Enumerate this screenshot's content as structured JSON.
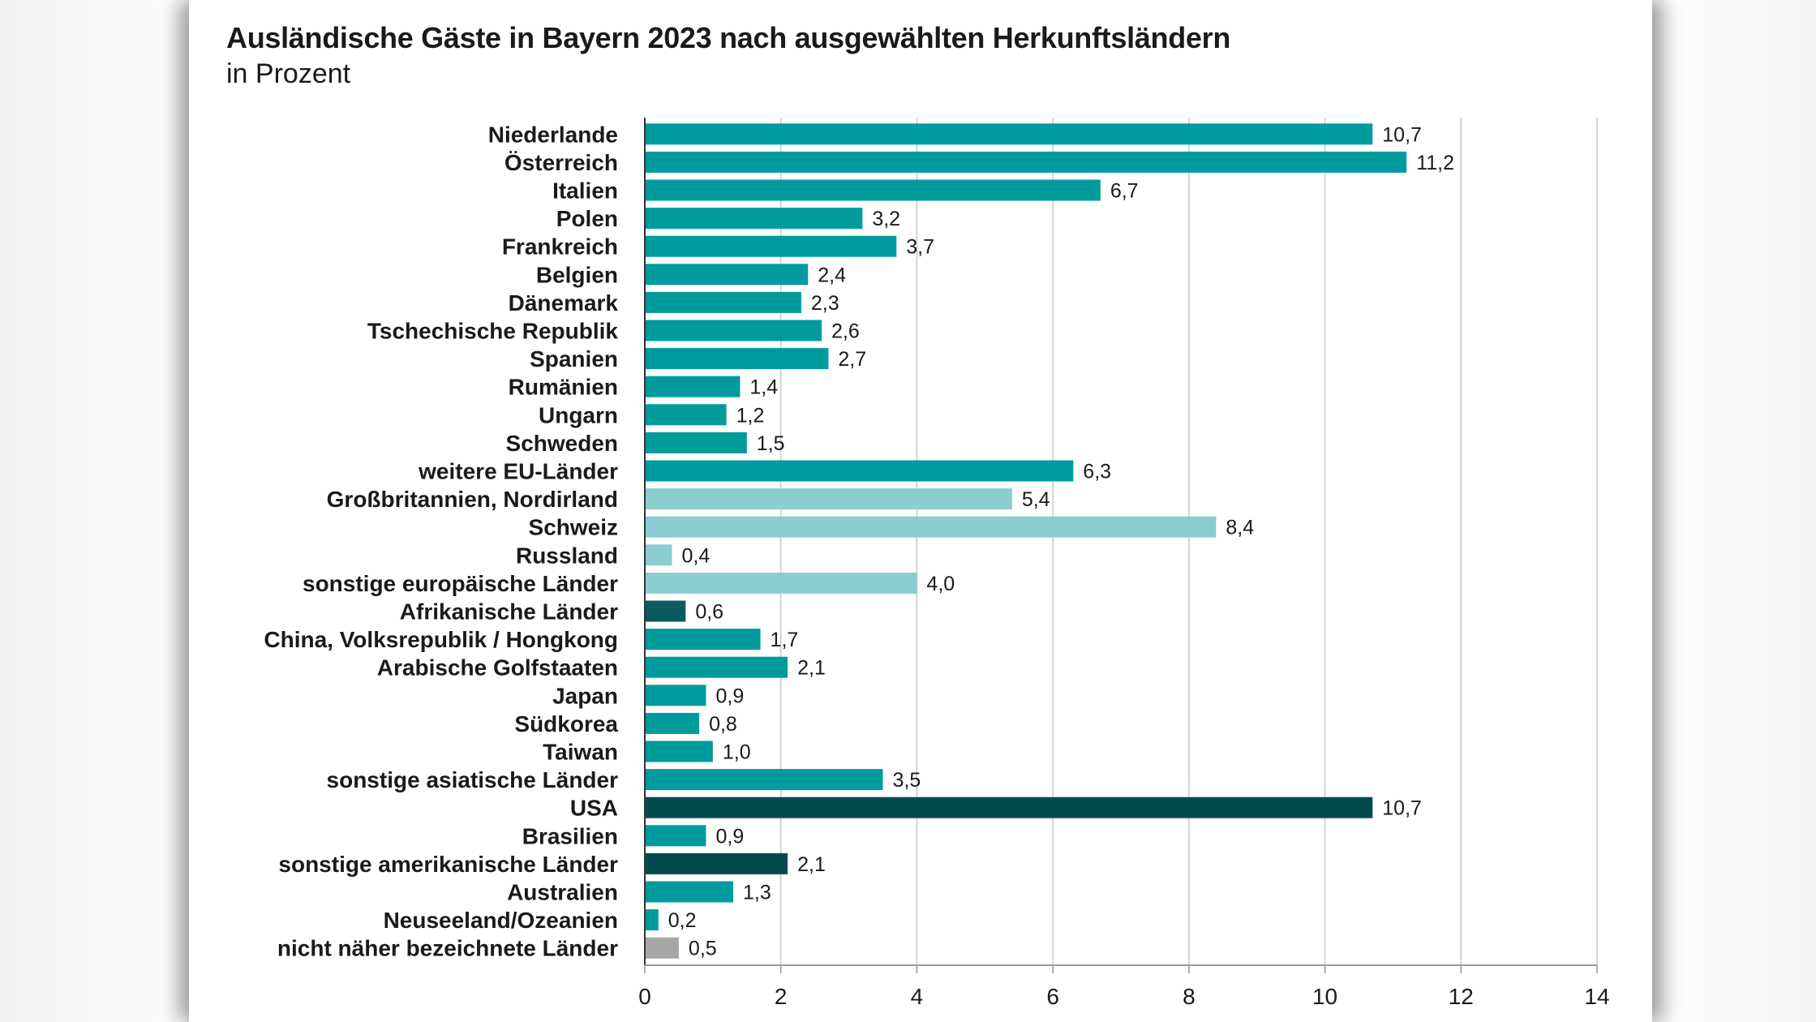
{
  "chart_data": {
    "type": "bar",
    "orientation": "horizontal",
    "title": "Ausländische Gäste in Bayern 2023 nach ausgewählten Herkunftsländern",
    "subtitle": "in Prozent",
    "xlim": [
      0,
      14
    ],
    "xticks": [
      0,
      2,
      4,
      6,
      8,
      10,
      12,
      14
    ],
    "grid": true,
    "categories": [
      "Niederlande",
      "Österreich",
      "Italien",
      "Polen",
      "Frankreich",
      "Belgien",
      "Dänemark",
      "Tschechische Republik",
      "Spanien",
      "Rumänien",
      "Ungarn",
      "Schweden",
      "weitere EU-Länder",
      "Großbritannien, Nordirland",
      "Schweiz",
      "Russland",
      "sonstige europäische Länder",
      "Afrikanische Länder",
      "China, Volksrepublik / Hongkong",
      "Arabische Golfstaaten",
      "Japan",
      "Südkorea",
      "Taiwan",
      "sonstige asiatische Länder",
      "USA",
      "Brasilien",
      "sonstige amerikanische Länder",
      "Australien",
      "Neuseeland/Ozeanien",
      "nicht näher bezeichnete Länder"
    ],
    "values": [
      10.7,
      11.2,
      6.7,
      3.2,
      3.7,
      2.4,
      2.3,
      2.6,
      2.7,
      1.4,
      1.2,
      1.5,
      6.3,
      5.4,
      8.4,
      0.4,
      4.0,
      0.6,
      1.7,
      2.1,
      0.9,
      0.8,
      1.0,
      3.5,
      10.7,
      0.9,
      2.1,
      1.3,
      0.2,
      0.5
    ],
    "value_labels": [
      "10,7",
      "11,2",
      "6,7",
      "3,2",
      "3,7",
      "2,4",
      "2,3",
      "2,6",
      "2,7",
      "1,4",
      "1,2",
      "1,5",
      "6,3",
      "5,4",
      "8,4",
      "0,4",
      "4,0",
      "0,6",
      "1,7",
      "2,1",
      "0,9",
      "0,8",
      "1,0",
      "3,5",
      "10,7",
      "0,9",
      "2,1",
      "1,3",
      "0,2",
      "0,5"
    ],
    "tick_labels": [
      "0",
      "2",
      "4",
      "6",
      "8",
      "10",
      "12",
      "14"
    ],
    "bar_colors": [
      "#009b9d",
      "#009b9d",
      "#009b9d",
      "#009b9d",
      "#009b9d",
      "#009b9d",
      "#009b9d",
      "#009b9d",
      "#009b9d",
      "#009b9d",
      "#009b9d",
      "#009b9d",
      "#009b9d",
      "#8ccdd1",
      "#8ccdd1",
      "#8ccdd1",
      "#8ccdd1",
      "#0b5a62",
      "#009b9d",
      "#009b9d",
      "#009b9d",
      "#009b9d",
      "#009b9d",
      "#009b9d",
      "#034a4c",
      "#009b9d",
      "#034a4c",
      "#009b9d",
      "#009b9d",
      "#a6a6a6"
    ]
  }
}
